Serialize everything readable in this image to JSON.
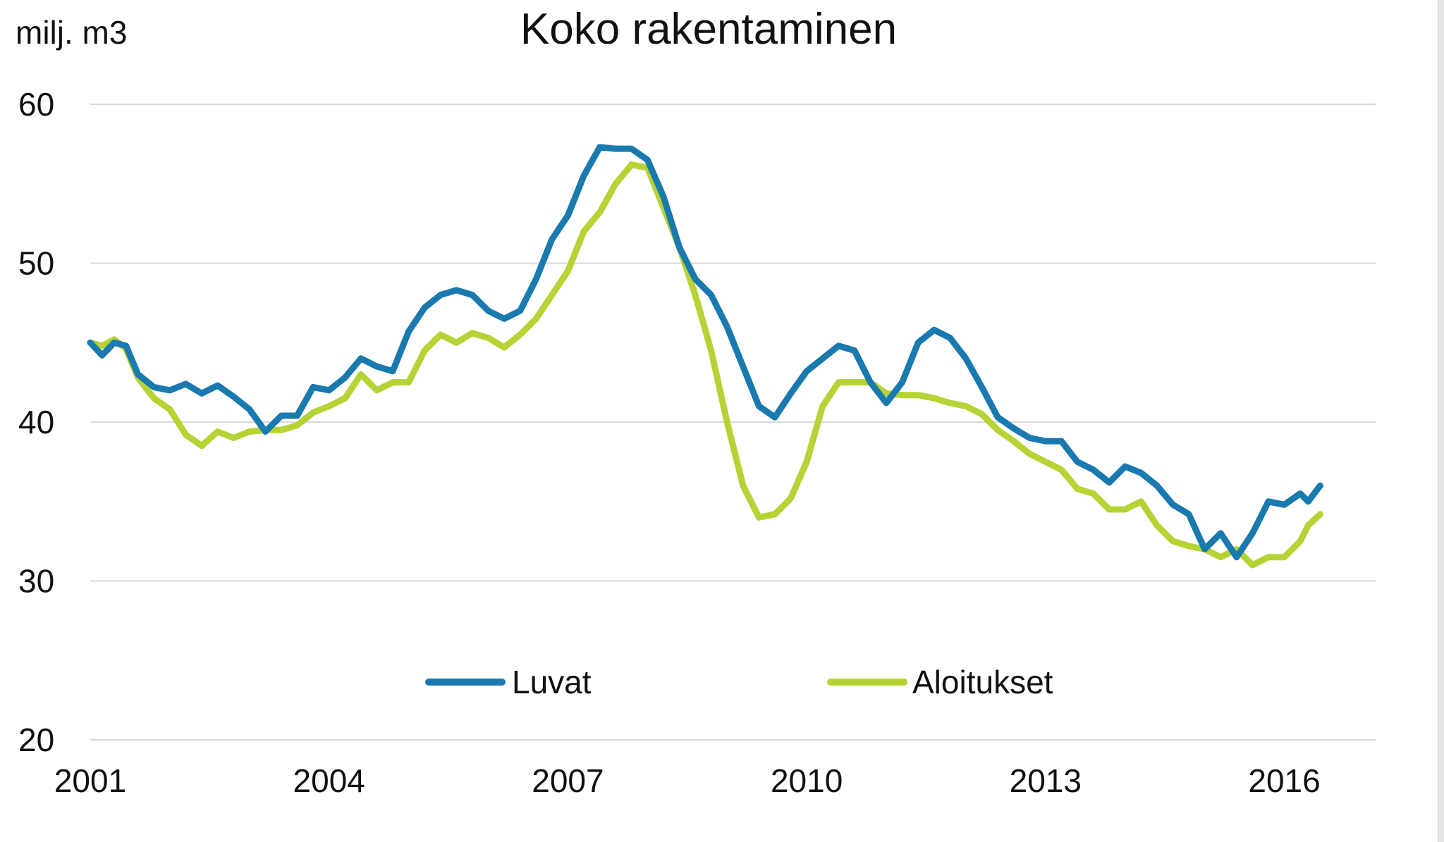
{
  "chart_data": {
    "type": "line",
    "title": "Koko rakentaminen",
    "ylabel": "milj. m3",
    "xlabel": "",
    "ylim": [
      20,
      60
    ],
    "yticks": [
      "20",
      "30",
      "40",
      "50",
      "60"
    ],
    "xlim": [
      2001,
      2016.7
    ],
    "xticks": [
      "2001",
      "2004",
      "2007",
      "2010",
      "2013",
      "2016"
    ],
    "grid": true,
    "legend_position": "bottom-center",
    "series": [
      {
        "name": "Luvat",
        "color": "#1a7ab0",
        "x": [
          2001.0,
          2001.15,
          2001.3,
          2001.45,
          2001.6,
          2001.8,
          2002.0,
          2002.2,
          2002.4,
          2002.6,
          2002.8,
          2003.0,
          2003.2,
          2003.4,
          2003.6,
          2003.8,
          2004.0,
          2004.2,
          2004.4,
          2004.6,
          2004.8,
          2005.0,
          2005.2,
          2005.4,
          2005.6,
          2005.8,
          2006.0,
          2006.2,
          2006.4,
          2006.6,
          2006.8,
          2007.0,
          2007.2,
          2007.4,
          2007.6,
          2007.8,
          2008.0,
          2008.2,
          2008.4,
          2008.6,
          2008.8,
          2009.0,
          2009.2,
          2009.4,
          2009.6,
          2009.8,
          2010.0,
          2010.2,
          2010.4,
          2010.6,
          2010.8,
          2011.0,
          2011.2,
          2011.4,
          2011.6,
          2011.8,
          2012.0,
          2012.2,
          2012.4,
          2012.6,
          2012.8,
          2013.0,
          2013.2,
          2013.4,
          2013.6,
          2013.8,
          2014.0,
          2014.2,
          2014.4,
          2014.6,
          2014.8,
          2015.0,
          2015.2,
          2015.4,
          2015.6,
          2015.8,
          2016.0,
          2016.2,
          2016.3,
          2016.45
        ],
        "values": [
          45.0,
          44.2,
          45.0,
          44.8,
          43.0,
          42.2,
          42.0,
          42.4,
          41.8,
          42.3,
          41.6,
          40.8,
          39.4,
          40.4,
          40.4,
          42.2,
          42.0,
          42.8,
          44.0,
          43.5,
          43.2,
          45.7,
          47.2,
          48.0,
          48.3,
          48.0,
          47.0,
          46.5,
          47.0,
          49.0,
          51.5,
          53.0,
          55.5,
          57.3,
          57.2,
          57.2,
          56.5,
          54.2,
          51.0,
          49.0,
          48.0,
          46.0,
          43.5,
          41.0,
          40.3,
          41.8,
          43.2,
          44.0,
          44.8,
          44.5,
          42.5,
          41.2,
          42.5,
          45.0,
          45.8,
          45.3,
          44.0,
          42.2,
          40.3,
          39.6,
          39.0,
          38.8,
          38.8,
          37.5,
          37.0,
          36.2,
          37.2,
          36.8,
          36.0,
          34.8,
          34.2,
          32.0,
          33.0,
          31.5,
          33.0,
          35.0,
          34.8,
          35.5,
          35.0,
          36.0
        ]
      },
      {
        "name": "Aloitukset",
        "color": "#b5d334",
        "x": [
          2001.0,
          2001.15,
          2001.3,
          2001.45,
          2001.6,
          2001.8,
          2002.0,
          2002.2,
          2002.4,
          2002.6,
          2002.8,
          2003.0,
          2003.2,
          2003.4,
          2003.6,
          2003.8,
          2004.0,
          2004.2,
          2004.4,
          2004.6,
          2004.8,
          2005.0,
          2005.2,
          2005.4,
          2005.6,
          2005.8,
          2006.0,
          2006.2,
          2006.4,
          2006.6,
          2006.8,
          2007.0,
          2007.2,
          2007.4,
          2007.6,
          2007.8,
          2008.0,
          2008.2,
          2008.4,
          2008.6,
          2008.8,
          2009.0,
          2009.2,
          2009.4,
          2009.6,
          2009.8,
          2010.0,
          2010.2,
          2010.4,
          2010.6,
          2010.8,
          2011.0,
          2011.2,
          2011.4,
          2011.6,
          2011.8,
          2012.0,
          2012.2,
          2012.4,
          2012.6,
          2012.8,
          2013.0,
          2013.2,
          2013.4,
          2013.6,
          2013.8,
          2014.0,
          2014.2,
          2014.4,
          2014.6,
          2014.8,
          2015.0,
          2015.2,
          2015.4,
          2015.6,
          2015.8,
          2016.0,
          2016.2,
          2016.3,
          2016.45
        ],
        "values": [
          45.0,
          44.8,
          45.2,
          44.6,
          42.8,
          41.5,
          40.8,
          39.2,
          38.5,
          39.4,
          39.0,
          39.4,
          39.5,
          39.5,
          39.8,
          40.6,
          41.0,
          41.5,
          43.0,
          42.0,
          42.5,
          42.5,
          44.5,
          45.5,
          45.0,
          45.6,
          45.3,
          44.7,
          45.5,
          46.5,
          48.0,
          49.5,
          52.0,
          53.2,
          55.0,
          56.2,
          56.0,
          53.5,
          51.0,
          48.0,
          44.5,
          40.0,
          36.0,
          34.0,
          34.2,
          35.2,
          37.5,
          41.0,
          42.5,
          42.5,
          42.5,
          41.8,
          41.7,
          41.7,
          41.5,
          41.2,
          41.0,
          40.5,
          39.5,
          38.8,
          38.0,
          37.5,
          37.0,
          35.8,
          35.5,
          34.5,
          34.5,
          35.0,
          33.5,
          32.5,
          32.2,
          32.0,
          31.5,
          32.0,
          31.0,
          31.5,
          31.5,
          32.5,
          33.5,
          34.2
        ]
      }
    ]
  }
}
